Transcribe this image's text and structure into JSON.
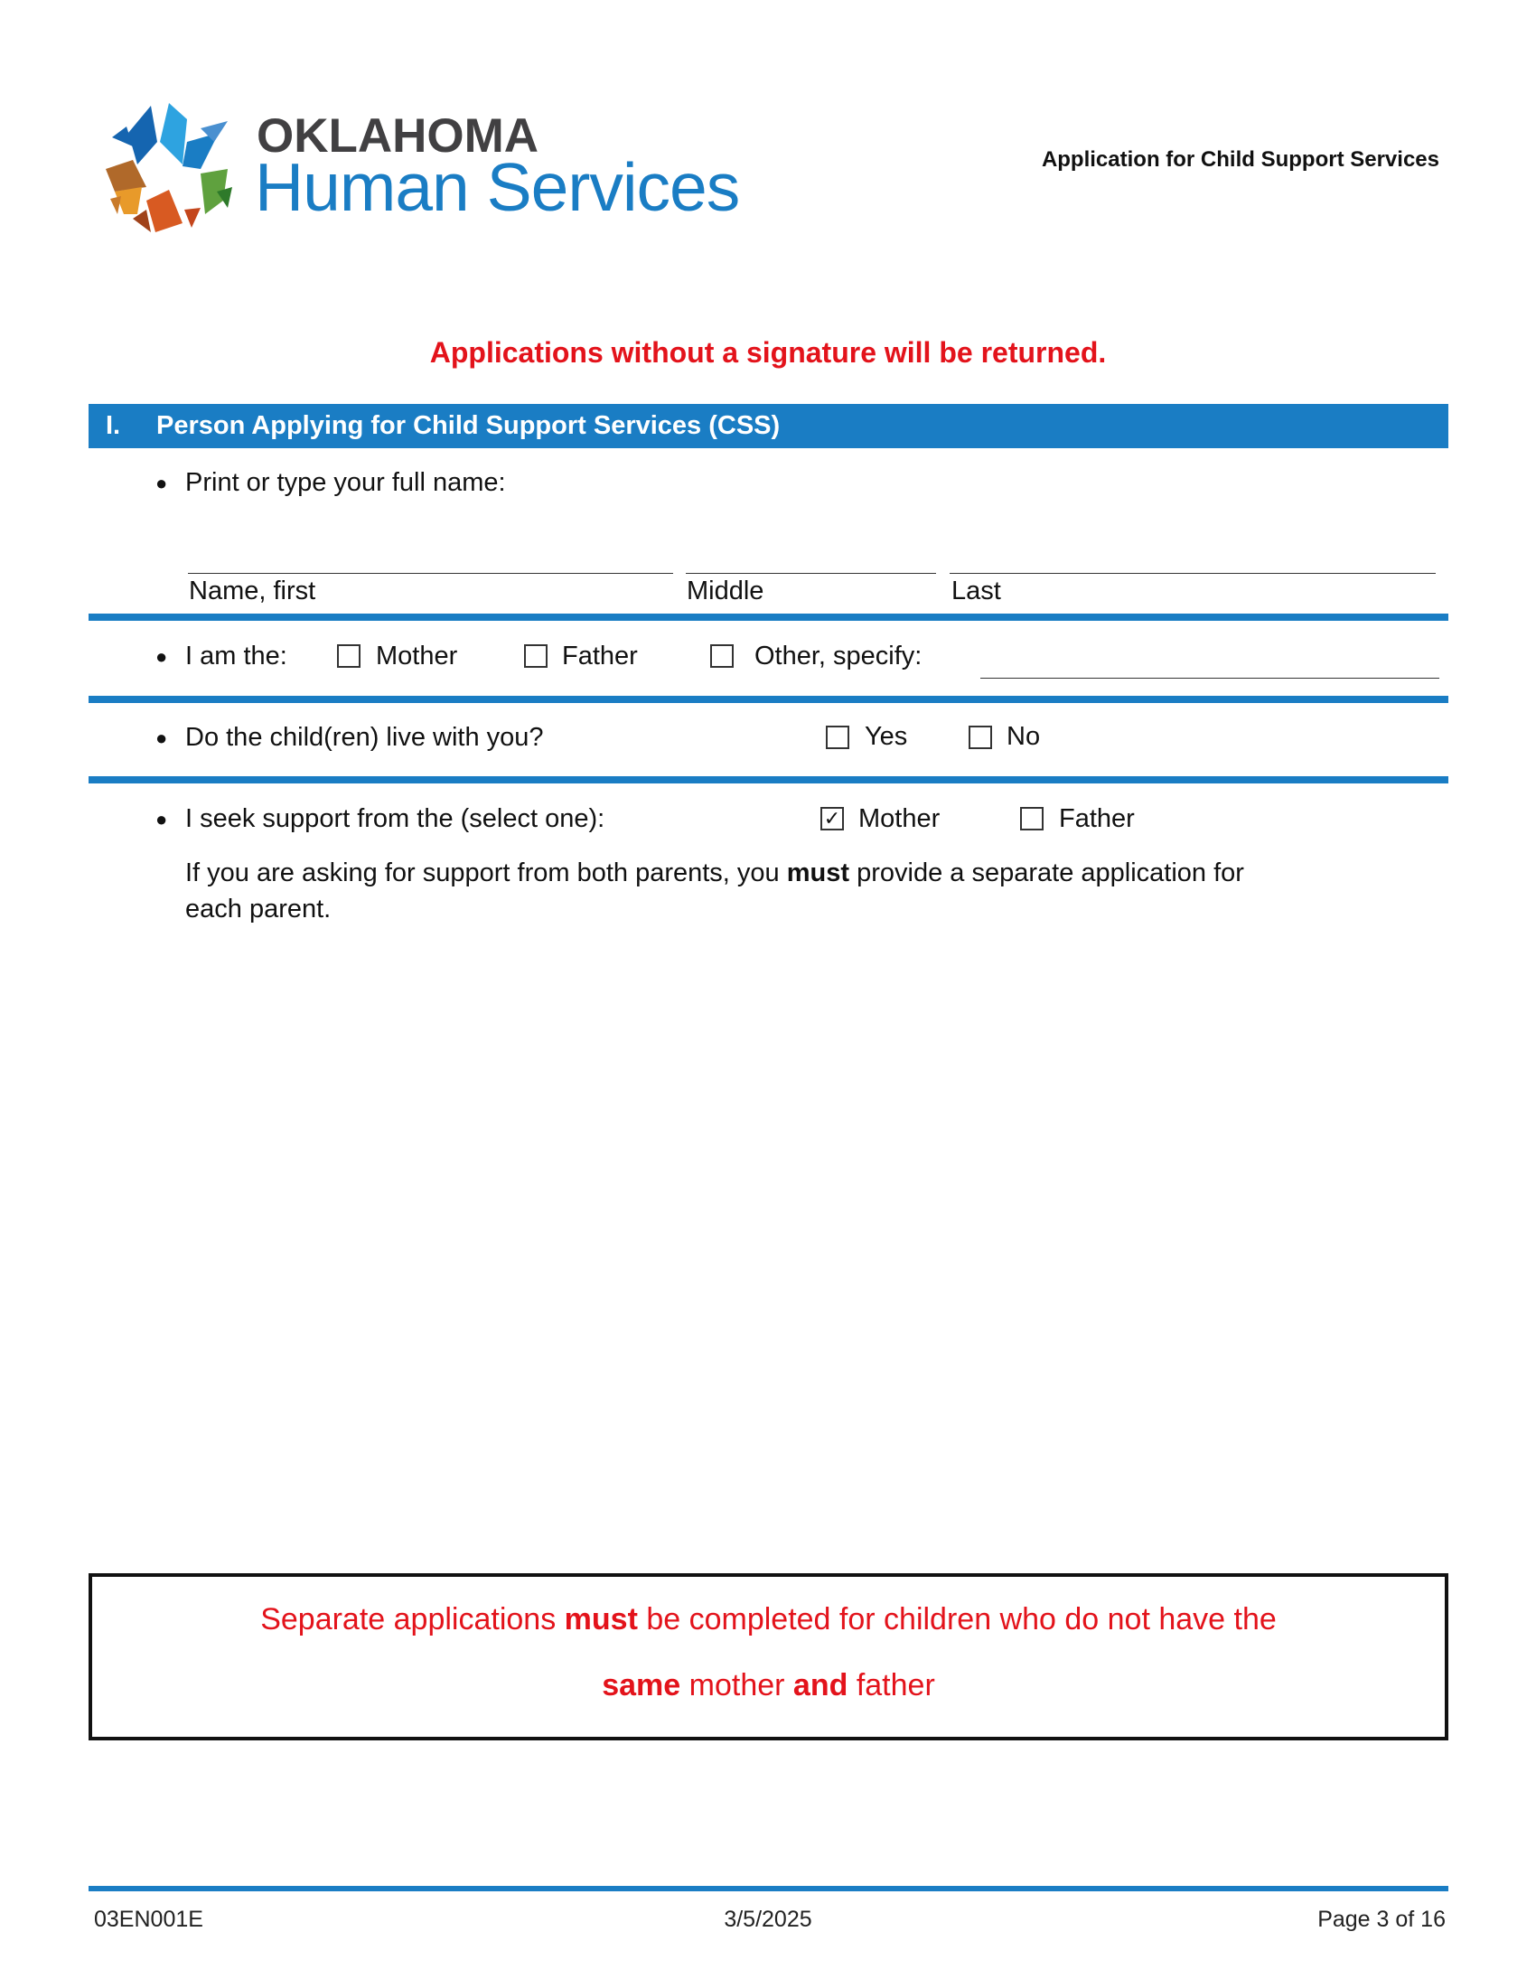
{
  "header": {
    "logo": {
      "line1": "OKLAHOMA",
      "line2": "Human Services",
      "colors": {
        "gray": "#414042",
        "blue": "#1a7dc4"
      }
    },
    "title": "Application for Child Support Services"
  },
  "warning": "Applications without a signature will be returned.",
  "section": {
    "number": "I.",
    "title": "Person Applying for Child Support Services (CSS)",
    "accent_color": "#1a7dc4"
  },
  "name_row": {
    "prompt": "Print or type your full name:",
    "fields": [
      {
        "label": "Name, first",
        "value": ""
      },
      {
        "label": "Middle",
        "value": ""
      },
      {
        "label": "Last",
        "value": ""
      }
    ]
  },
  "relation_row": {
    "prompt": "I am the:",
    "options": [
      {
        "label": "Mother",
        "checked": false
      },
      {
        "label": "Father",
        "checked": false
      },
      {
        "label": "Other, specify:",
        "checked": false
      }
    ],
    "specify_value": ""
  },
  "live_row": {
    "prompt": "Do the child(ren) live with you?",
    "options": [
      {
        "label": "Yes",
        "checked": false
      },
      {
        "label": "No",
        "checked": false
      }
    ]
  },
  "support_row": {
    "prompt": "I seek support from the (select one):",
    "options": [
      {
        "label": "Mother",
        "checked": true
      },
      {
        "label": "Father",
        "checked": false
      }
    ],
    "note_a": "If you are asking for support from both parents, you ",
    "note_bold": "must",
    "note_b": " provide a separate application for",
    "note_line2": "each parent."
  },
  "notice": {
    "l1_a": "Separate applications ",
    "l1_bold": "must",
    "l1_b": " be completed for children who do not have the",
    "l2_bold1": "same",
    "l2_a": " mother ",
    "l2_bold2": "and",
    "l2_b": " father"
  },
  "footer": {
    "form_id": "03EN001E",
    "date": "3/5/2025",
    "page": "Page 3 of 16"
  }
}
